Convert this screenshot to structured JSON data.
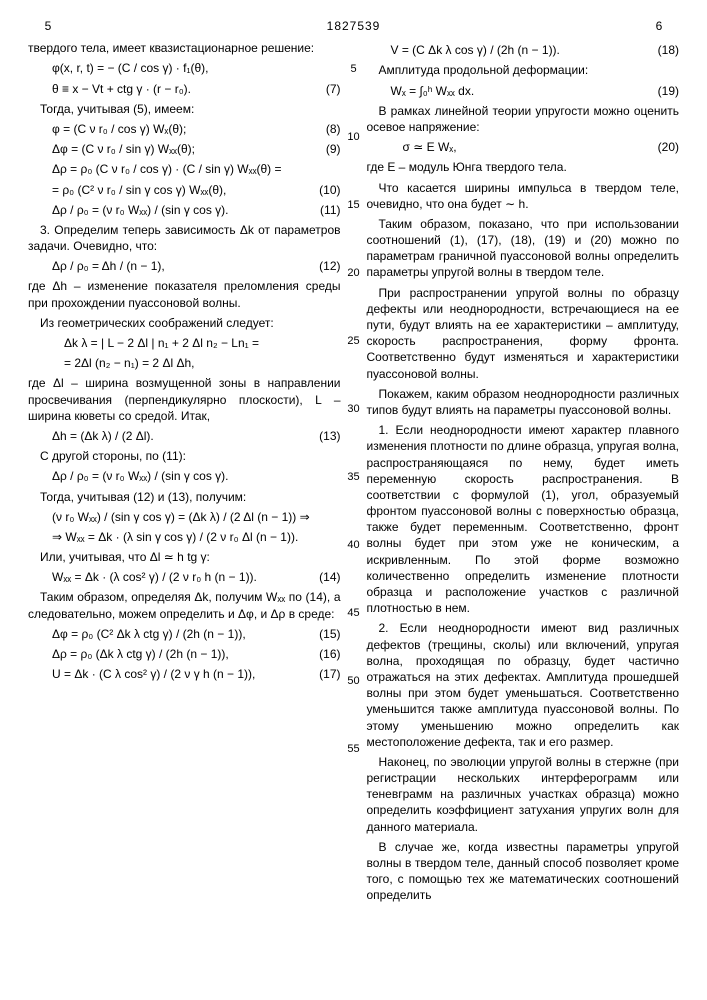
{
  "header": {
    "pg_left": "5",
    "patent": "1827539",
    "pg_right": "6"
  },
  "margin_nums": [
    "5",
    "10",
    "15",
    "20",
    "25",
    "30",
    "35",
    "40",
    "45",
    "50",
    "55"
  ],
  "left": {
    "intro": "твердого тела, имеет квазистационарное решение:",
    "eq1a": "φ(x, r, t) = − (C / cos γ) · f₁(θ),",
    "eq1b": "θ ≡ x − Vt + ctg γ · (r − r₀).",
    "eqn7": "(7)",
    "t2": "Тогда, учитывая (5), имеем:",
    "eq8": "φ = (C ν r₀ / cos γ) Wₓ(θ);",
    "eqn8": "(8)",
    "eq9": "Δφ = (C ν r₀ / sin γ) Wₓₓ(θ);",
    "eqn9": "(9)",
    "eq10a": "Δρ = ρ₀ (C ν r₀ / cos γ) · (C / sin γ) Wₓₓ(θ) =",
    "eq10b": "= ρ₀ (C² ν r₀ / sin γ cos γ) Wₓₓ(θ),",
    "eqn10": "(10)",
    "eq11": "Δρ / ρ₀ = (ν r₀ Wₓₓ) / (sin γ cos γ).",
    "eqn11": "(11)",
    "sec3": "3. Определим теперь зависимость Δk от параметров задачи. Очевидно, что:",
    "eq12": "Δρ / ρ₀ = Δh / (n − 1),",
    "eqn12": "(12)",
    "t3": "где Δh – изменение показателя преломления среды при прохождении пуассоновой волны.",
    "t4": "Из геометрических соображений следует:",
    "eqdk1": "Δk λ = | L − 2 Δl | n₁ + 2 Δl n₂ − Ln₁ =",
    "eqdk2": "= 2Δl (n₂ − n₁) = 2 Δl Δh,",
    "t5": "где Δl – ширина возмущенной зоны в направлении просвечивания (перпендикулярно плоскости), L – ширина кюветы со средой. Итак,",
    "eq13": "Δh = (Δk λ) / (2 Δl).",
    "eqn13": "(13)",
    "t6": "С другой стороны, по (11):",
    "eq11b": "Δρ / ρ₀ = (ν r₀ Wₓₓ) / (sin γ cos γ).",
    "t7": "Тогда, учитывая (12) и (13), получим:",
    "eq14a": "(ν r₀ Wₓₓ) / (sin γ cos γ) = (Δk λ) / (2 Δl (n − 1)) ⇒",
    "eq14b": "⇒ Wₓₓ = Δk · (λ sin γ cos γ) / (2 ν r₀ Δl (n − 1)).",
    "t8": "Или, учитывая, что Δl ≃ h tg γ:",
    "eq14": "Wₓₓ = Δk · (λ cos² γ) / (2 ν r₀ h (n − 1)).",
    "eqn14": "(14)",
    "t9": "Таким образом, определяя Δk, получим Wₓₓ по (14), а следовательно, можем определить и Δφ, и Δρ в среде:",
    "eq15": "Δφ = ρ₀ (C² Δk λ ctg γ) / (2h (n − 1)),",
    "eqn15": "(15)",
    "eq16": "Δρ = ρ₀ (Δk λ ctg γ) / (2h (n − 1)),",
    "eqn16": "(16)",
    "eq17": "U = Δk · (C λ cos² γ) / (2 ν γ h (n − 1)),",
    "eqn17": "(17)"
  },
  "right": {
    "eq18": "V = (C Δk λ cos γ) / (2h (n − 1)).",
    "eqn18": "(18)",
    "t1": "Амплитуда продольной деформации:",
    "eq19": "Wₓ = ∫₀ʰ Wₓₓ dx.",
    "eqn19": "(19)",
    "t2": "В рамках линейной теории упругости можно оценить осевое напряжение:",
    "eq20": "σ ≃ E Wₓ,",
    "eqn20": "(20)",
    "t3": "где E – модуль Юнга твердого тела.",
    "t4": "Что касается ширины импульса в твердом теле, очевидно, что она будет ∼ h.",
    "t5": "Таким образом, показано, что при использовании соотношений (1), (17), (18), (19) и (20) можно по параметрам граничной пуассоновой волны определить параметры упругой волны в твердом теле.",
    "t6": "При распространении упругой волны по образцу дефекты или неоднородности, встречающиеся на ее пути, будут влиять на ее характеристики – амплитуду, скорость распространения, форму фронта. Соответственно будут изменяться и характеристики пуассоновой волны.",
    "t7": "Покажем, каким образом неоднородности различных типов будут влиять на параметры пуассоновой волны.",
    "p1": "1. Если неоднородности имеют характер плавного изменения плотности по длине образца, упругая волна, распространяющаяся по нему, будет иметь переменную скорость распространения. В соответствии с формулой (1), угол, образуемый фронтом пуассоновой волны с поверхностью образца, также будет переменным. Соответственно, фронт волны будет при этом уже не коническим, а искривленным. По этой форме возможно количественно определить изменение плотности образца и расположение участков с различной плотностью в нем.",
    "p2": "2. Если неоднородности имеют вид различных дефектов (трещины, сколы) или включений, упругая волна, проходящая по образцу, будет частично отражаться на этих дефектах. Амплитуда прошедшей волны при этом будет уменьшаться. Соответственно уменьшится также амплитуда пуассоновой волны. По этому уменьшению можно определить как местоположение дефекта, так и его размер.",
    "t8": "Наконец, по эволюции упругой волны в стержне (при регистрации нескольких интерферограмм или теневграмм на различных участках образца) можно определить коэффициент затухания упругих волн для данного материала.",
    "t9": "В случае же, когда известны параметры упругой волны в твердом теле, данный способ позволяет кроме того, с помощью тех же математических соотношений определить"
  }
}
